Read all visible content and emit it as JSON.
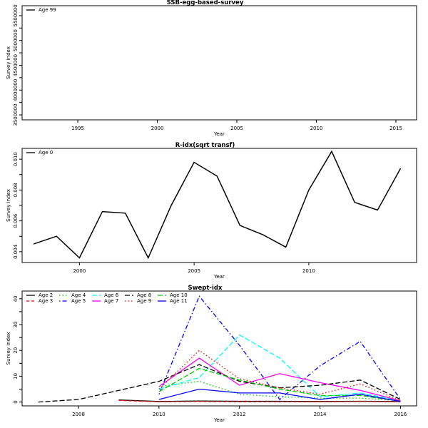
{
  "chart_data": [
    {
      "type": "line",
      "title": "SSB-egg-based-survey",
      "xlabel": "Year",
      "ylabel": "Survey index",
      "xlim": [
        1991.5,
        2016.3
      ],
      "ylim": [
        3400000,
        5700000
      ],
      "xticks": [
        "1995",
        "2000",
        "2005",
        "2010",
        "2015"
      ],
      "yticks": [
        "3500000",
        "4000000",
        "4500000",
        "5000000",
        "5500000"
      ],
      "legend": "top-left",
      "series": [
        {
          "name": "Age 99",
          "color": "#000000",
          "dash": "solid",
          "x": [],
          "y": []
        }
      ]
    },
    {
      "type": "line",
      "title": "R-idx(sqrt transf)",
      "xlabel": "Year",
      "ylabel": "Survey index",
      "xlim": [
        1997.5,
        2014.7
      ],
      "ylim": [
        0.0033,
        0.0107
      ],
      "xticks": [
        "2000",
        "2005",
        "2010"
      ],
      "yticks": [
        "0.004",
        "0.006",
        "0.008",
        "0.010"
      ],
      "legend": "top-left",
      "series": [
        {
          "name": "Age 0",
          "color": "#000000",
          "dash": "solid",
          "x": [
            1998,
            1999,
            2000,
            2001,
            2002,
            2003,
            2004,
            2005,
            2006,
            2007,
            2008,
            2009,
            2010,
            2011,
            2012,
            2013,
            2014
          ],
          "y": [
            0.0045,
            0.005,
            0.0036,
            0.0066,
            0.0065,
            0.0036,
            0.007,
            0.0098,
            0.0089,
            0.0057,
            0.0051,
            0.0043,
            0.008,
            0.0105,
            0.0072,
            0.0067,
            0.0094
          ]
        }
      ]
    },
    {
      "type": "line",
      "title": "Swept-idx",
      "xlabel": "Year",
      "ylabel": "Survey index",
      "xlim": [
        2006.6,
        2016.4
      ],
      "ylim": [
        -1.5,
        43
      ],
      "xticks": [
        "2008",
        "2010",
        "2012",
        "2014",
        "2016"
      ],
      "yticks": [
        "0",
        "10",
        "20",
        "30",
        "40"
      ],
      "legend": "top-left",
      "series": [
        {
          "name": "Age 2",
          "color": "#000000",
          "dash": "solid",
          "x": [
            2009,
            2010,
            2011,
            2012,
            2013,
            2014,
            2015,
            2016
          ],
          "y": [
            0.8,
            0.2,
            0.4,
            0.3,
            0.3,
            0.2,
            0.3,
            0.2
          ]
        },
        {
          "name": "Age 3",
          "color": "#ff0000",
          "dash": "dashed",
          "x": [
            2009,
            2010,
            2011,
            2012,
            2013,
            2014,
            2015,
            2016
          ],
          "y": [
            0.6,
            0.1,
            0.2,
            0.1,
            0.1,
            0.1,
            0.2,
            0.1
          ]
        },
        {
          "name": "Age 4",
          "color": "#00cc00",
          "dash": "dotted",
          "x": [
            2010,
            2011,
            2012,
            2013,
            2014,
            2015,
            2016
          ],
          "y": [
            6.0,
            8.0,
            3.0,
            2.0,
            1.5,
            1.5,
            0.5
          ]
        },
        {
          "name": "Age 5",
          "color": "#0000ff",
          "dash": "dotdash",
          "x": [
            2010,
            2011,
            2012,
            2013,
            2014,
            2015,
            2016
          ],
          "y": [
            3.0,
            41.0,
            22.0,
            1.0,
            14.0,
            23.5,
            1.0
          ]
        },
        {
          "name": "Age 6",
          "color": "#00ffff",
          "dash": "longdash",
          "x": [
            2010,
            2011,
            2012,
            2013,
            2014,
            2015,
            2016
          ],
          "y": [
            5.0,
            9.5,
            26.0,
            17.0,
            2.0,
            3.5,
            0.5
          ]
        },
        {
          "name": "Age 7",
          "color": "#ff00ff",
          "dash": "solid",
          "x": [
            2010,
            2011,
            2012,
            2013,
            2014,
            2015,
            2016
          ],
          "y": [
            6.0,
            17.0,
            6.5,
            11.0,
            7.5,
            4.5,
            0.5
          ]
        },
        {
          "name": "Age 8",
          "color": "#000000",
          "dash": "longdash",
          "x": [
            2007,
            2008,
            2010,
            2011,
            2012,
            2013,
            2014,
            2015,
            2016
          ],
          "y": [
            0.0,
            1.0,
            8.0,
            14.5,
            8.0,
            5.5,
            6.5,
            8.5,
            1.0
          ]
        },
        {
          "name": "Age 9",
          "color": "#ff0000",
          "dash": "dotted",
          "x": [
            2010,
            2011,
            2012,
            2013,
            2014,
            2015,
            2016
          ],
          "y": [
            5.0,
            20.0,
            9.0,
            5.5,
            3.0,
            7.0,
            0.5
          ]
        },
        {
          "name": "Age 10",
          "color": "#00cc00",
          "dash": "longdash",
          "x": [
            2010,
            2011,
            2012,
            2013,
            2014,
            2015,
            2016
          ],
          "y": [
            4.0,
            13.0,
            8.5,
            5.0,
            2.5,
            2.5,
            0.3
          ]
        },
        {
          "name": "Age 11",
          "color": "#0000ff",
          "dash": "solid",
          "x": [
            2010,
            2011,
            2012,
            2013,
            2014,
            2015,
            2016
          ],
          "y": [
            1.0,
            5.0,
            3.5,
            3.5,
            1.0,
            3.0,
            0.2
          ]
        }
      ]
    }
  ]
}
